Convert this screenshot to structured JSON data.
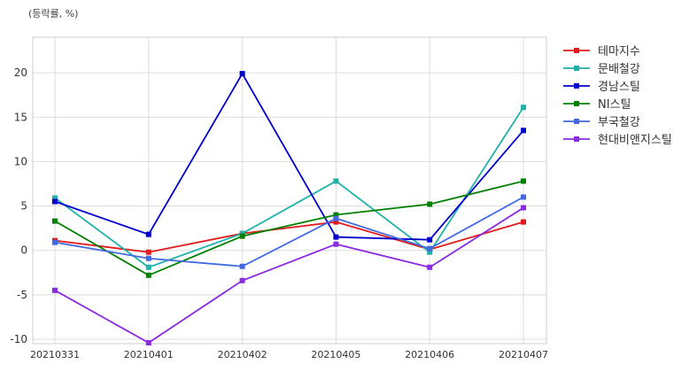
{
  "chart_data": {
    "type": "line",
    "unit_label": "(등락률, %)",
    "categories": [
      "20210331",
      "20210401",
      "20210402",
      "20210405",
      "20210406",
      "20210407"
    ],
    "ylim": [
      -10.5,
      24
    ],
    "yticks": [
      -10,
      -5,
      0,
      5,
      10,
      15,
      20
    ],
    "grid": true,
    "legend_position": "right",
    "series": [
      {
        "name": "테마지수",
        "color": "#e31a1c",
        "values": [
          1.1,
          -0.2,
          1.9,
          3.2,
          0.1,
          3.2
        ]
      },
      {
        "name": "문배철강",
        "color": "#20b2aa",
        "values": [
          5.9,
          -1.9,
          1.9,
          7.8,
          -0.2,
          16.1
        ]
      },
      {
        "name": "경남스틸",
        "color": "#0000cd",
        "values": [
          5.5,
          1.8,
          19.9,
          1.5,
          1.2,
          13.5
        ]
      },
      {
        "name": "NI스틸",
        "color": "#008000",
        "values": [
          3.3,
          -2.8,
          1.6,
          4.0,
          5.2,
          7.8
        ]
      },
      {
        "name": "부국철강",
        "color": "#4169e1",
        "values": [
          0.9,
          -0.9,
          -1.8,
          3.6,
          0.2,
          6.0
        ]
      },
      {
        "name": "현대비앤지스틸",
        "color": "#8a2be2",
        "values": [
          -4.5,
          -10.4,
          -3.4,
          0.7,
          -1.9,
          4.8
        ]
      }
    ]
  }
}
